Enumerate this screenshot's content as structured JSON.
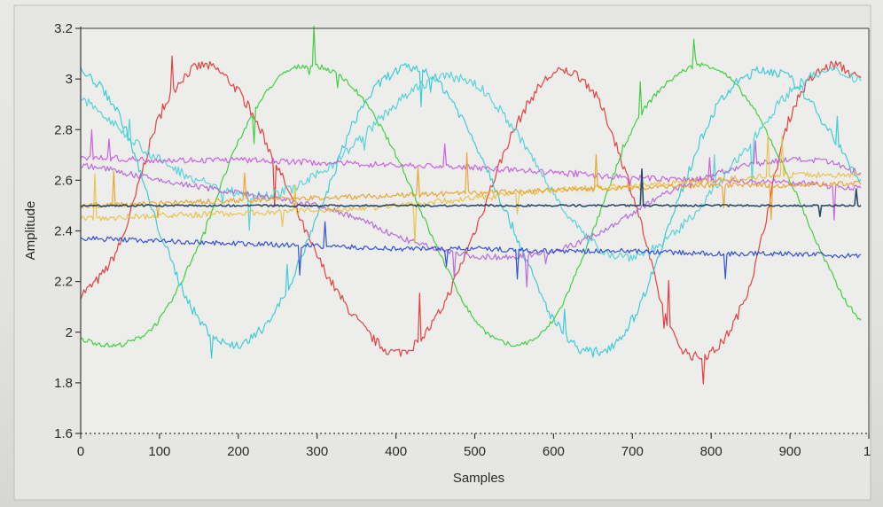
{
  "chart_data": {
    "type": "line",
    "xlabel": "Samples",
    "ylabel": "Amplitude",
    "xlim": [
      0,
      1000
    ],
    "ylim": [
      1.6,
      3.2
    ],
    "x_ticks": [
      "0",
      "100",
      "200",
      "300",
      "400",
      "500",
      "600",
      "700",
      "800",
      "900",
      "1"
    ],
    "y_ticks": [
      "1.6",
      "1.8",
      "2",
      "2.2",
      "2.4",
      "2.6",
      "2.8",
      "3",
      "3.2"
    ],
    "grid": false,
    "legend": "none",
    "series": [
      {
        "color": "#e03030",
        "noise": 0.02,
        "x": [
          0,
          50,
          100,
          150,
          200,
          250,
          300,
          350,
          400,
          450,
          500,
          550,
          600,
          650,
          700,
          750,
          800,
          850,
          900,
          950,
          990
        ],
        "y": [
          2.15,
          2.35,
          2.85,
          3.05,
          2.95,
          2.65,
          2.3,
          2.05,
          1.92,
          2.05,
          2.4,
          2.8,
          3.02,
          2.95,
          2.55,
          2.0,
          1.92,
          2.2,
          2.85,
          3.05,
          3.0
        ]
      },
      {
        "color": "#30cc30",
        "noise": 0.01,
        "x": [
          0,
          50,
          100,
          150,
          200,
          250,
          300,
          350,
          400,
          450,
          500,
          550,
          600,
          650,
          700,
          750,
          800,
          850,
          900,
          950,
          990
        ],
        "y": [
          1.97,
          1.95,
          2.05,
          2.35,
          2.75,
          3.0,
          3.05,
          2.95,
          2.7,
          2.35,
          2.05,
          1.95,
          2.05,
          2.4,
          2.8,
          3.0,
          3.05,
          2.9,
          2.6,
          2.25,
          2.05
        ]
      },
      {
        "color": "#2cc8d4",
        "noise": 0.02,
        "x": [
          0,
          50,
          100,
          150,
          200,
          250,
          300,
          350,
          400,
          450,
          500,
          550,
          600,
          650,
          700,
          750,
          800,
          850,
          900,
          950,
          990
        ],
        "y": [
          3.03,
          2.85,
          2.4,
          2.05,
          1.95,
          2.1,
          2.45,
          2.85,
          3.03,
          3.0,
          2.75,
          2.4,
          2.05,
          1.92,
          2.05,
          2.45,
          2.85,
          3.02,
          3.0,
          2.8,
          2.6
        ]
      },
      {
        "color": "#48d0d8",
        "noise": 0.02,
        "x": [
          0,
          50,
          100,
          150,
          200,
          250,
          300,
          350,
          400,
          450,
          500,
          550,
          600,
          650,
          700,
          750,
          800,
          850,
          900,
          950,
          990
        ],
        "y": [
          2.92,
          2.8,
          2.68,
          2.6,
          2.55,
          2.55,
          2.62,
          2.75,
          2.9,
          3.0,
          2.98,
          2.8,
          2.55,
          2.35,
          2.3,
          2.38,
          2.55,
          2.75,
          2.95,
          3.03,
          3.0
        ]
      },
      {
        "color": "#c455e0",
        "noise": 0.012,
        "x": [
          0,
          100,
          200,
          300,
          400,
          500,
          600,
          700,
          800,
          900,
          990
        ],
        "y": [
          2.69,
          2.68,
          2.68,
          2.67,
          2.66,
          2.65,
          2.63,
          2.61,
          2.6,
          2.59,
          2.57
        ]
      },
      {
        "color": "#b060d8",
        "noise": 0.012,
        "x": [
          0,
          100,
          200,
          300,
          350,
          400,
          450,
          500,
          550,
          600,
          650,
          700,
          750,
          800,
          850,
          900,
          950,
          990
        ],
        "y": [
          2.66,
          2.6,
          2.55,
          2.5,
          2.45,
          2.38,
          2.33,
          2.3,
          2.3,
          2.32,
          2.38,
          2.47,
          2.56,
          2.62,
          2.66,
          2.68,
          2.67,
          2.63
        ]
      },
      {
        "color": "#e8c040",
        "noise": 0.012,
        "x": [
          0,
          100,
          200,
          300,
          400,
          500,
          600,
          700,
          800,
          900,
          990
        ],
        "y": [
          2.45,
          2.46,
          2.47,
          2.48,
          2.5,
          2.53,
          2.56,
          2.58,
          2.6,
          2.62,
          2.62
        ]
      },
      {
        "color": "#e8a020",
        "noise": 0.01,
        "x": [
          0,
          100,
          200,
          300,
          400,
          500,
          600,
          700,
          800,
          900,
          990
        ],
        "y": [
          2.5,
          2.51,
          2.52,
          2.53,
          2.54,
          2.55,
          2.56,
          2.57,
          2.58,
          2.58,
          2.59
        ]
      },
      {
        "color": "#1a3a5c",
        "noise": 0.004,
        "x": [
          0,
          200,
          400,
          600,
          800,
          990
        ],
        "y": [
          2.5,
          2.5,
          2.5,
          2.5,
          2.5,
          2.5
        ]
      },
      {
        "color": "#2040d8",
        "noise": 0.01,
        "x": [
          0,
          100,
          200,
          300,
          400,
          500,
          600,
          700,
          800,
          900,
          990
        ],
        "y": [
          2.37,
          2.36,
          2.35,
          2.34,
          2.33,
          2.33,
          2.32,
          2.32,
          2.31,
          2.31,
          2.3
        ]
      }
    ]
  }
}
